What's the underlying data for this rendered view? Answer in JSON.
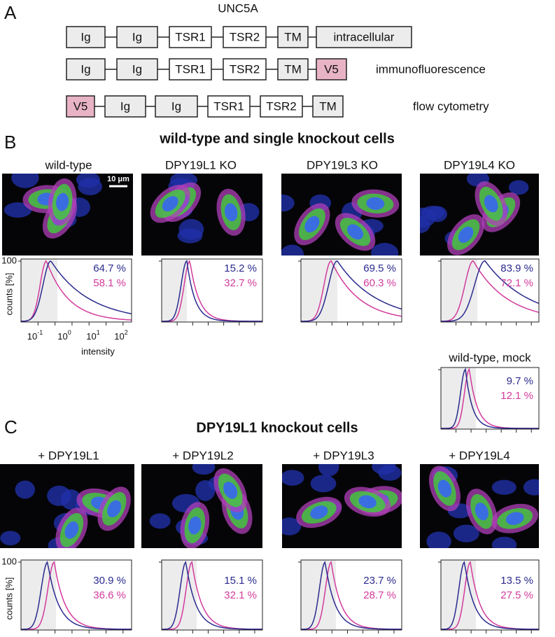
{
  "panel_a": {
    "label": "A",
    "title": "UNC5A",
    "constructs": [
      {
        "domains": [
          "Ig",
          "Ig",
          "TSR1",
          "TSR2",
          "TM",
          "intracellular"
        ]
      },
      {
        "domains": [
          "Ig",
          "Ig",
          "TSR1",
          "TSR2",
          "TM",
          "V5"
        ],
        "caption": "immunofluorescence"
      },
      {
        "domains": [
          "V5",
          "Ig",
          "Ig",
          "TSR1",
          "TSR2",
          "TM"
        ],
        "caption": "flow cytometry"
      }
    ]
  },
  "panel_b": {
    "label": "B",
    "heading": "wild-type and single knockout cells",
    "scale_bar": "10 μm",
    "y_tick": "100",
    "y_label": "counts [%]",
    "x_ticks": [
      {
        "base": "10",
        "exp": "-1"
      },
      {
        "base": "10",
        "exp": "0"
      },
      {
        "base": "10",
        "exp": "1"
      },
      {
        "base": "10",
        "exp": "2"
      }
    ],
    "x_label": "intensity",
    "conditions": [
      {
        "title": "wild-type",
        "blue": "64.7 %",
        "pink": "58.1 %"
      },
      {
        "title": "DPY19L1 KO",
        "blue": "15.2 %",
        "pink": "32.7 %"
      },
      {
        "title": "DPY19L3 KO",
        "blue": "69.5 %",
        "pink": "60.3 %"
      },
      {
        "title": "DPY19L4 KO",
        "blue": "83.9 %",
        "pink": "72.1 %"
      }
    ],
    "mock": {
      "title": "wild-type, mock",
      "blue": "9.7 %",
      "pink": "12.1 %"
    }
  },
  "panel_c": {
    "label": "C",
    "heading": "DPY19L1 knockout cells",
    "y_tick": "100",
    "y_label": "counts [%]",
    "conditions": [
      {
        "title": "+ DPY19L1",
        "blue": "30.9 %",
        "pink": "36.6 %"
      },
      {
        "title": "+ DPY19L2",
        "blue": "15.1 %",
        "pink": "32.1 %"
      },
      {
        "title": "+ DPY19L3",
        "blue": "23.7 %",
        "pink": "28.7 %"
      },
      {
        "title": "+ DPY19L4",
        "blue": "13.5 %",
        "pink": "27.5 %"
      }
    ]
  }
}
